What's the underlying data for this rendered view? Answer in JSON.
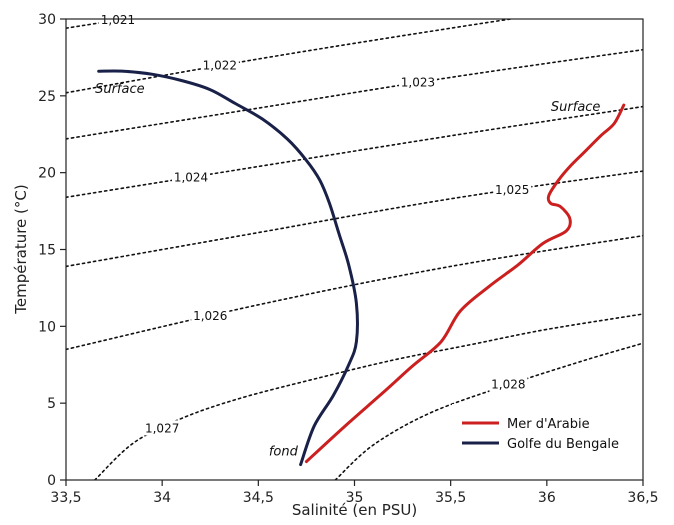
{
  "chart_data": {
    "type": "line",
    "xlabel": "Salinité (en PSU)",
    "ylabel": "Température (°C)",
    "xlim": [
      33.5,
      36.5
    ],
    "ylim": [
      0,
      30
    ],
    "xticks": [
      33.5,
      34,
      34.5,
      35,
      35.5,
      36,
      36.5
    ],
    "xtick_labels": [
      "33,5",
      "34",
      "34,5",
      "35",
      "35,5",
      "36",
      "36,5"
    ],
    "yticks": [
      0,
      5,
      10,
      15,
      20,
      25,
      30
    ],
    "ytick_labels": [
      "0",
      "5",
      "10",
      "15",
      "20",
      "25",
      "30"
    ],
    "grid": false,
    "legend_position": "bottom-right",
    "series": [
      {
        "name": "Mer d'Arabie",
        "color": "#cc1f1f",
        "x": [
          34.75,
          34.95,
          35.15,
          35.3,
          35.45,
          35.55,
          35.7,
          35.85,
          35.98,
          36.1,
          36.12,
          36.07,
          36.02,
          36.01,
          36.06,
          36.12,
          36.2,
          36.28,
          36.35,
          36.4
        ],
        "y": [
          1.2,
          3.5,
          5.7,
          7.4,
          9.0,
          11.0,
          12.6,
          14.0,
          15.4,
          16.2,
          17.0,
          17.8,
          18.0,
          18.5,
          19.5,
          20.4,
          21.4,
          22.4,
          23.2,
          24.4
        ]
      },
      {
        "name": "Golfe du Bengale",
        "color": "#1a2148",
        "x": [
          34.72,
          34.79,
          34.89,
          34.97,
          35.01,
          35.01,
          34.97,
          34.92,
          34.87,
          34.82,
          34.75,
          34.65,
          34.52,
          34.38,
          34.25,
          34.1,
          33.95,
          33.8,
          33.67
        ],
        "y": [
          1.0,
          3.5,
          5.5,
          7.5,
          9.0,
          11.5,
          14.0,
          16.0,
          18.0,
          19.5,
          20.8,
          22.2,
          23.5,
          24.5,
          25.4,
          26.0,
          26.4,
          26.6,
          26.6
        ]
      }
    ],
    "isopycnals": [
      {
        "label": "1,021",
        "x": [
          33.5,
          34.6,
          35.5
        ],
        "y": [
          29.4,
          31.6,
          33.6
        ]
      },
      {
        "label": "1,022",
        "x": [
          33.5,
          34.5,
          35.5,
          36.5
        ],
        "y": [
          25.2,
          27.4,
          29.4,
          31.3
        ]
      },
      {
        "label": "1,023",
        "x": [
          33.5,
          34.5,
          35.5,
          36.5
        ],
        "y": [
          22.2,
          24.2,
          26.2,
          28.0
        ]
      },
      {
        "label": "1,024",
        "x": [
          33.5,
          34.5,
          35.5,
          36.5
        ],
        "y": [
          18.4,
          20.4,
          22.4,
          24.3
        ]
      },
      {
        "label": "1,025",
        "x": [
          33.5,
          34.5,
          35.5,
          36.5
        ],
        "y": [
          13.9,
          16.1,
          18.3,
          20.1
        ]
      },
      {
        "label": "1,026",
        "x": [
          33.5,
          34.5,
          35.5,
          36.5
        ],
        "y": [
          8.5,
          11.4,
          13.9,
          15.9
        ]
      },
      {
        "label": "1,027",
        "x": [
          33.65,
          33.85,
          34.1,
          34.4,
          34.8,
          35.2,
          35.6,
          36.0,
          36.5
        ],
        "y": [
          0,
          2.4,
          4.0,
          5.3,
          6.6,
          7.8,
          8.8,
          9.8,
          10.8
        ]
      },
      {
        "label": "1,028",
        "x": [
          34.9,
          35.1,
          35.4,
          35.8,
          36.2,
          36.5
        ],
        "y": [
          0,
          2.3,
          4.4,
          6.2,
          7.8,
          8.9
        ]
      }
    ],
    "annotations": [
      {
        "text": "Surface",
        "x": 33.78,
        "y": 25.2
      },
      {
        "text": "Surface",
        "x": 36.15,
        "y": 24.0
      },
      {
        "text": "fond",
        "x": 34.63,
        "y": 1.6
      }
    ]
  }
}
